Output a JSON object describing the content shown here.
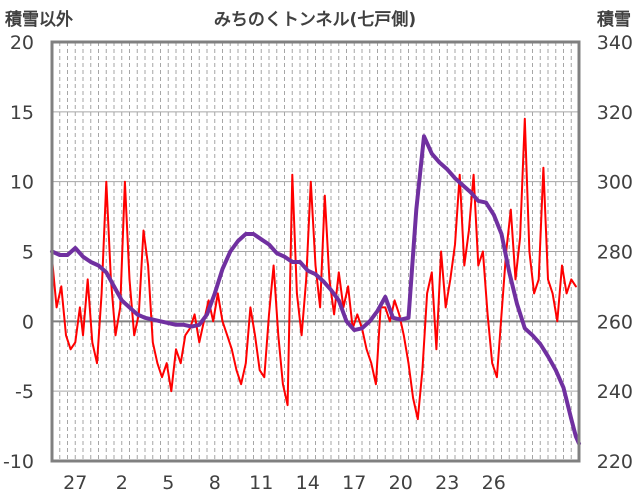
{
  "chart_data": {
    "type": "line",
    "title": "みちのくトンネル(七戸側)",
    "ylabel_left": "積雪以外",
    "ylabel_right": "積雪",
    "left_axis": {
      "ylim": [
        -10,
        20
      ],
      "ticks": [
        "20",
        "15",
        "10",
        "5",
        "0",
        "-5",
        "-10"
      ]
    },
    "right_axis": {
      "ylim": [
        220,
        340
      ],
      "ticks": [
        "340",
        "320",
        "300",
        "280",
        "260",
        "240",
        "220"
      ]
    },
    "x_range": [
      0,
      34
    ],
    "x_tick_positions": [
      1.5,
      4.5,
      7.5,
      10.5,
      13.5,
      16.5,
      19.5,
      22.5,
      25.5,
      28.5,
      31.5
    ],
    "x_tick_labels": [
      "27",
      "2",
      "5",
      "8",
      "11",
      "14",
      "17",
      "20",
      "23",
      "26"
    ],
    "x_tick_label_positions": [
      3,
      9,
      15,
      21,
      27,
      33,
      39,
      45,
      51,
      57
    ],
    "grid": true,
    "colors": {
      "red": "#ff0000",
      "purple": "#7030a0",
      "frame": "#808080",
      "zero": "#808080",
      "grid": "#a6a6a6"
    },
    "series": [
      {
        "axis": "left",
        "color": "#ff0000",
        "points": [
          [
            0.0,
            4.5
          ],
          [
            0.3,
            1.0
          ],
          [
            0.6,
            2.5
          ],
          [
            0.9,
            -1.0
          ],
          [
            1.2,
            -2.0
          ],
          [
            1.5,
            -1.5
          ],
          [
            1.8,
            1.0
          ],
          [
            2.0,
            -1.0
          ],
          [
            2.3,
            3.0
          ],
          [
            2.6,
            -1.5
          ],
          [
            2.9,
            -3.0
          ],
          [
            3.2,
            2.0
          ],
          [
            3.5,
            10.0
          ],
          [
            3.8,
            3.0
          ],
          [
            4.1,
            -1.0
          ],
          [
            4.4,
            1.0
          ],
          [
            4.7,
            10.0
          ],
          [
            5.0,
            3.0
          ],
          [
            5.3,
            -1.0
          ],
          [
            5.6,
            0.5
          ],
          [
            5.9,
            6.5
          ],
          [
            6.2,
            4.0
          ],
          [
            6.5,
            -1.5
          ],
          [
            6.8,
            -3.0
          ],
          [
            7.1,
            -4.0
          ],
          [
            7.4,
            -3.0
          ],
          [
            7.7,
            -5.0
          ],
          [
            8.0,
            -2.0
          ],
          [
            8.3,
            -3.0
          ],
          [
            8.6,
            -1.0
          ],
          [
            8.9,
            -0.5
          ],
          [
            9.2,
            0.5
          ],
          [
            9.5,
            -1.5
          ],
          [
            9.8,
            0.0
          ],
          [
            10.1,
            1.5
          ],
          [
            10.4,
            0.0
          ],
          [
            10.7,
            2.0
          ],
          [
            11.0,
            0.0
          ],
          [
            11.3,
            -1.0
          ],
          [
            11.6,
            -2.0
          ],
          [
            11.9,
            -3.5
          ],
          [
            12.2,
            -4.5
          ],
          [
            12.5,
            -3.0
          ],
          [
            12.8,
            1.0
          ],
          [
            13.1,
            -1.0
          ],
          [
            13.4,
            -3.5
          ],
          [
            13.7,
            -4.0
          ],
          [
            14.0,
            0.5
          ],
          [
            14.3,
            4.0
          ],
          [
            14.6,
            -1.0
          ],
          [
            14.9,
            -4.5
          ],
          [
            15.2,
            -6.0
          ],
          [
            15.5,
            10.5
          ],
          [
            15.8,
            2.0
          ],
          [
            16.1,
            -1.0
          ],
          [
            16.4,
            3.0
          ],
          [
            16.7,
            10.0
          ],
          [
            17.0,
            4.0
          ],
          [
            17.3,
            1.0
          ],
          [
            17.6,
            9.0
          ],
          [
            17.9,
            3.0
          ],
          [
            18.2,
            0.5
          ],
          [
            18.5,
            3.5
          ],
          [
            18.8,
            1.0
          ],
          [
            19.1,
            2.5
          ],
          [
            19.4,
            -0.5
          ],
          [
            19.7,
            0.5
          ],
          [
            20.0,
            -0.5
          ],
          [
            20.3,
            -2.0
          ],
          [
            20.6,
            -3.0
          ],
          [
            20.9,
            -4.5
          ],
          [
            21.2,
            1.0
          ],
          [
            21.5,
            1.0
          ],
          [
            21.8,
            0.0
          ],
          [
            22.1,
            1.5
          ],
          [
            22.4,
            0.5
          ],
          [
            22.7,
            -1.0
          ],
          [
            23.0,
            -3.0
          ],
          [
            23.3,
            -5.5
          ],
          [
            23.6,
            -7.0
          ],
          [
            23.9,
            -3.5
          ],
          [
            24.2,
            2.0
          ],
          [
            24.5,
            3.5
          ],
          [
            24.8,
            -2.0
          ],
          [
            25.1,
            5.0
          ],
          [
            25.4,
            1.0
          ],
          [
            25.7,
            3.0
          ],
          [
            26.0,
            5.5
          ],
          [
            26.3,
            10.5
          ],
          [
            26.6,
            4.0
          ],
          [
            26.9,
            6.5
          ],
          [
            27.2,
            10.5
          ],
          [
            27.5,
            4.0
          ],
          [
            27.8,
            5.0
          ],
          [
            28.1,
            0.5
          ],
          [
            28.4,
            -3.0
          ],
          [
            28.7,
            -4.0
          ],
          [
            29.0,
            0.5
          ],
          [
            29.3,
            5.0
          ],
          [
            29.6,
            8.0
          ],
          [
            29.9,
            3.0
          ],
          [
            30.2,
            6.0
          ],
          [
            30.5,
            14.5
          ],
          [
            30.8,
            5.0
          ],
          [
            31.1,
            2.0
          ],
          [
            31.4,
            3.0
          ],
          [
            31.7,
            11.0
          ],
          [
            32.0,
            3.0
          ],
          [
            32.3,
            2.0
          ],
          [
            32.6,
            0.0
          ],
          [
            32.9,
            4.0
          ],
          [
            33.2,
            2.0
          ],
          [
            33.5,
            3.0
          ],
          [
            33.8,
            2.5
          ]
        ]
      },
      {
        "axis": "right",
        "color": "#7030a0",
        "points": [
          [
            0.0,
            280.0
          ],
          [
            0.5,
            279.0
          ],
          [
            1.0,
            279.0
          ],
          [
            1.5,
            281.0
          ],
          [
            2.0,
            278.5
          ],
          [
            2.5,
            277.0
          ],
          [
            3.0,
            276.0
          ],
          [
            3.5,
            274.0
          ],
          [
            4.0,
            270.0
          ],
          [
            4.5,
            266.0
          ],
          [
            5.0,
            264.0
          ],
          [
            5.5,
            262.0
          ],
          [
            6.0,
            261.0
          ],
          [
            6.5,
            260.5
          ],
          [
            7.0,
            260.0
          ],
          [
            7.5,
            259.5
          ],
          [
            8.0,
            259.0
          ],
          [
            8.5,
            259.0
          ],
          [
            9.0,
            258.5
          ],
          [
            9.5,
            259.0
          ],
          [
            10.0,
            262.0
          ],
          [
            10.5,
            268.0
          ],
          [
            11.0,
            275.0
          ],
          [
            11.5,
            280.0
          ],
          [
            12.0,
            283.0
          ],
          [
            12.5,
            285.0
          ],
          [
            13.0,
            285.0
          ],
          [
            13.5,
            283.5
          ],
          [
            14.0,
            282.0
          ],
          [
            14.5,
            279.5
          ],
          [
            15.0,
            278.5
          ],
          [
            15.5,
            277.0
          ],
          [
            16.0,
            277.0
          ],
          [
            16.5,
            274.5
          ],
          [
            17.0,
            273.5
          ],
          [
            17.5,
            271.5
          ],
          [
            18.0,
            269.0
          ],
          [
            18.5,
            266.0
          ],
          [
            19.0,
            260.0
          ],
          [
            19.5,
            257.5
          ],
          [
            20.0,
            258.0
          ],
          [
            20.5,
            260.0
          ],
          [
            21.0,
            263.0
          ],
          [
            21.5,
            267.0
          ],
          [
            22.0,
            261.0
          ],
          [
            22.5,
            260.5
          ],
          [
            23.0,
            261.0
          ],
          [
            23.5,
            292.0
          ],
          [
            24.0,
            313.0
          ],
          [
            24.5,
            308.0
          ],
          [
            25.0,
            305.5
          ],
          [
            25.5,
            303.5
          ],
          [
            26.0,
            301.0
          ],
          [
            26.5,
            299.0
          ],
          [
            27.0,
            297.0
          ],
          [
            27.5,
            294.5
          ],
          [
            28.0,
            294.0
          ],
          [
            28.5,
            290.5
          ],
          [
            29.0,
            285.0
          ],
          [
            29.5,
            274.0
          ],
          [
            30.0,
            265.0
          ],
          [
            30.5,
            258.0
          ],
          [
            31.0,
            256.0
          ],
          [
            31.5,
            253.5
          ],
          [
            32.0,
            250.0
          ],
          [
            32.5,
            246.0
          ],
          [
            33.0,
            241.0
          ],
          [
            33.5,
            232.0
          ],
          [
            33.8,
            227.0
          ],
          [
            34.0,
            225.0
          ]
        ]
      }
    ]
  }
}
